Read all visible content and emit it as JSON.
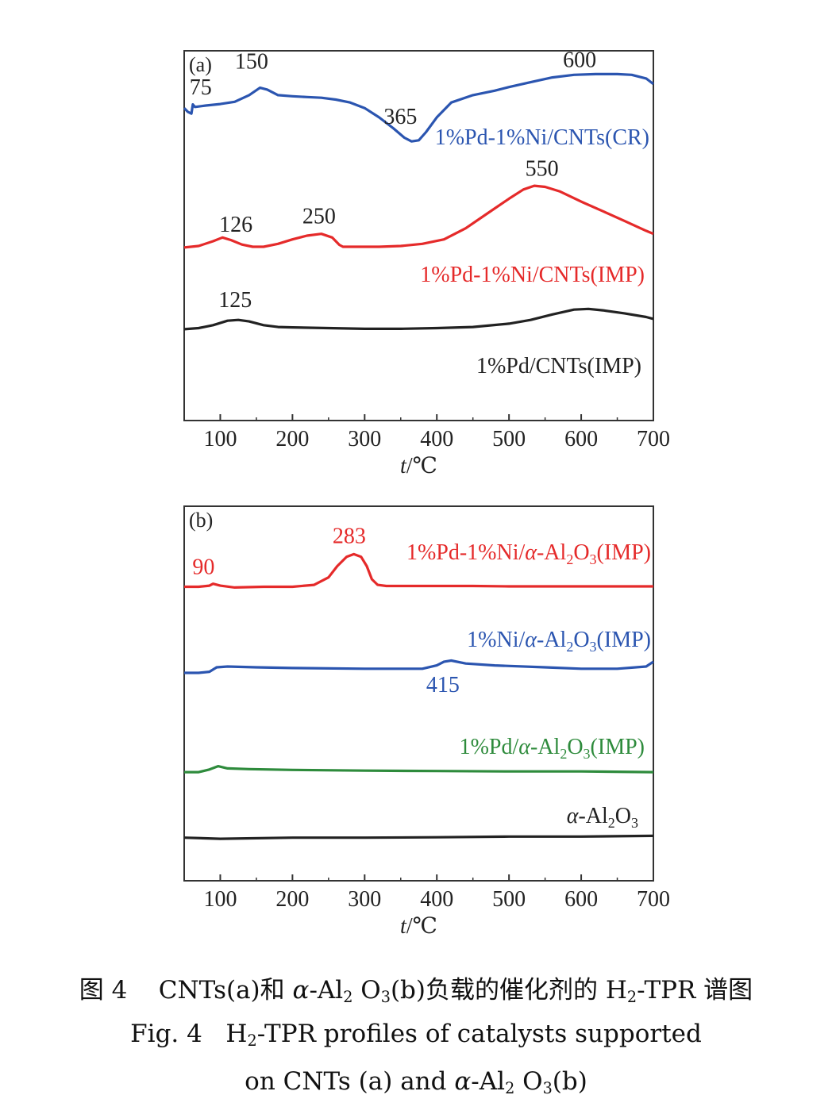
{
  "chart_data": [
    {
      "type": "line",
      "panel_label": "(a)",
      "xlabel_var": "t",
      "xlabel_unit": "/℃",
      "xlim": [
        50,
        700
      ],
      "x_ticks": [
        "100",
        "200",
        "300",
        "400",
        "500",
        "600",
        "700"
      ],
      "series": [
        {
          "name": "1%Pd-1%Ni/CNTs(CR)",
          "color": "#2b55b0",
          "points": [
            [
              50,
              0.845
            ],
            [
              55,
              0.835
            ],
            [
              60,
              0.83
            ],
            [
              62,
              0.855
            ],
            [
              65,
              0.848
            ],
            [
              80,
              0.852
            ],
            [
              100,
              0.856
            ],
            [
              120,
              0.862
            ],
            [
              140,
              0.88
            ],
            [
              155,
              0.9
            ],
            [
              165,
              0.895
            ],
            [
              180,
              0.88
            ],
            [
              200,
              0.877
            ],
            [
              220,
              0.875
            ],
            [
              240,
              0.873
            ],
            [
              260,
              0.868
            ],
            [
              280,
              0.86
            ],
            [
              300,
              0.845
            ],
            [
              320,
              0.82
            ],
            [
              340,
              0.79
            ],
            [
              355,
              0.765
            ],
            [
              365,
              0.755
            ],
            [
              375,
              0.758
            ],
            [
              385,
              0.78
            ],
            [
              400,
              0.82
            ],
            [
              420,
              0.86
            ],
            [
              450,
              0.88
            ],
            [
              480,
              0.892
            ],
            [
              500,
              0.902
            ],
            [
              530,
              0.915
            ],
            [
              560,
              0.928
            ],
            [
              590,
              0.935
            ],
            [
              620,
              0.937
            ],
            [
              650,
              0.937
            ],
            [
              670,
              0.935
            ],
            [
              690,
              0.925
            ],
            [
              700,
              0.91
            ]
          ],
          "annotations": [
            {
              "text": "75",
              "x": 75
            },
            {
              "text": "150",
              "x": 150
            },
            {
              "text": "365",
              "x": 365
            },
            {
              "text": "600",
              "x": 600
            }
          ]
        },
        {
          "name": "1%Pd-1%Ni/CNTs(IMP)",
          "color": "#e52a2a",
          "points": [
            [
              50,
              0.468
            ],
            [
              70,
              0.472
            ],
            [
              90,
              0.485
            ],
            [
              103,
              0.495
            ],
            [
              115,
              0.488
            ],
            [
              130,
              0.476
            ],
            [
              145,
              0.47
            ],
            [
              160,
              0.47
            ],
            [
              180,
              0.478
            ],
            [
              200,
              0.49
            ],
            [
              220,
              0.5
            ],
            [
              240,
              0.505
            ],
            [
              255,
              0.495
            ],
            [
              265,
              0.475
            ],
            [
              270,
              0.47
            ],
            [
              290,
              0.47
            ],
            [
              320,
              0.47
            ],
            [
              350,
              0.472
            ],
            [
              380,
              0.478
            ],
            [
              410,
              0.49
            ],
            [
              440,
              0.52
            ],
            [
              470,
              0.56
            ],
            [
              500,
              0.6
            ],
            [
              520,
              0.625
            ],
            [
              535,
              0.635
            ],
            [
              550,
              0.632
            ],
            [
              570,
              0.62
            ],
            [
              600,
              0.592
            ],
            [
              630,
              0.566
            ],
            [
              660,
              0.54
            ],
            [
              690,
              0.513
            ],
            [
              700,
              0.505
            ]
          ],
          "annotations": [
            {
              "text": "126",
              "x": 126
            },
            {
              "text": "250",
              "x": 250
            },
            {
              "text": "550",
              "x": 550
            }
          ]
        },
        {
          "name": "1%Pd/CNTs(IMP)",
          "color": "#222222",
          "points": [
            [
              50,
              0.247
            ],
            [
              70,
              0.25
            ],
            [
              90,
              0.258
            ],
            [
              110,
              0.27
            ],
            [
              125,
              0.272
            ],
            [
              140,
              0.268
            ],
            [
              160,
              0.258
            ],
            [
              180,
              0.253
            ],
            [
              200,
              0.252
            ],
            [
              250,
              0.25
            ],
            [
              300,
              0.248
            ],
            [
              350,
              0.248
            ],
            [
              400,
              0.25
            ],
            [
              450,
              0.253
            ],
            [
              500,
              0.262
            ],
            [
              530,
              0.272
            ],
            [
              560,
              0.287
            ],
            [
              590,
              0.3
            ],
            [
              610,
              0.302
            ],
            [
              630,
              0.298
            ],
            [
              660,
              0.29
            ],
            [
              690,
              0.28
            ],
            [
              700,
              0.275
            ]
          ],
          "annotations": [
            {
              "text": "125",
              "x": 125
            }
          ]
        }
      ]
    },
    {
      "type": "line",
      "panel_label": "(b)",
      "xlabel_var": "t",
      "xlabel_unit": "/℃",
      "xlim": [
        50,
        700
      ],
      "x_ticks": [
        "100",
        "200",
        "300",
        "400",
        "500",
        "600",
        "700"
      ],
      "series": [
        {
          "name_parts": [
            "1%Pd-1%Ni/",
            "α",
            "-Al",
            "2",
            "O",
            "3",
            "(IMP)"
          ],
          "color": "#e52a2a",
          "points": [
            [
              50,
              0.785
            ],
            [
              70,
              0.785
            ],
            [
              85,
              0.788
            ],
            [
              90,
              0.793
            ],
            [
              100,
              0.788
            ],
            [
              120,
              0.783
            ],
            [
              160,
              0.785
            ],
            [
              200,
              0.785
            ],
            [
              230,
              0.79
            ],
            [
              250,
              0.81
            ],
            [
              262,
              0.84
            ],
            [
              275,
              0.865
            ],
            [
              285,
              0.872
            ],
            [
              295,
              0.865
            ],
            [
              303,
              0.84
            ],
            [
              310,
              0.805
            ],
            [
              318,
              0.79
            ],
            [
              330,
              0.787
            ],
            [
              380,
              0.787
            ],
            [
              450,
              0.787
            ],
            [
              500,
              0.786
            ],
            [
              600,
              0.786
            ],
            [
              700,
              0.786
            ]
          ],
          "annotations": [
            {
              "text": "90",
              "x": 90
            },
            {
              "text": "283",
              "x": 283
            }
          ]
        },
        {
          "name_parts": [
            "1%Ni/",
            "α",
            "-Al",
            "2",
            "O",
            "3",
            "(IMP)"
          ],
          "color": "#2b55b0",
          "points": [
            [
              50,
              0.555
            ],
            [
              70,
              0.555
            ],
            [
              85,
              0.558
            ],
            [
              95,
              0.57
            ],
            [
              110,
              0.572
            ],
            [
              150,
              0.57
            ],
            [
              200,
              0.568
            ],
            [
              300,
              0.566
            ],
            [
              380,
              0.566
            ],
            [
              400,
              0.575
            ],
            [
              410,
              0.585
            ],
            [
              420,
              0.588
            ],
            [
              440,
              0.58
            ],
            [
              480,
              0.575
            ],
            [
              550,
              0.57
            ],
            [
              600,
              0.566
            ],
            [
              650,
              0.566
            ],
            [
              690,
              0.572
            ],
            [
              700,
              0.585
            ]
          ],
          "annotations": [
            {
              "text": "415",
              "x": 415
            }
          ]
        },
        {
          "name_parts": [
            "1%Pd/",
            "α",
            "-Al",
            "2",
            "O",
            "3",
            "(IMP)"
          ],
          "color": "#2e8b3c",
          "points": [
            [
              50,
              0.29
            ],
            [
              70,
              0.29
            ],
            [
              85,
              0.297
            ],
            [
              97,
              0.306
            ],
            [
              110,
              0.3
            ],
            [
              140,
              0.298
            ],
            [
              200,
              0.296
            ],
            [
              300,
              0.294
            ],
            [
              400,
              0.293
            ],
            [
              500,
              0.292
            ],
            [
              600,
              0.292
            ],
            [
              700,
              0.29
            ]
          ]
        },
        {
          "name_parts": [
            "",
            "α",
            "-Al",
            "2",
            "O",
            "3",
            ""
          ],
          "color": "#222222",
          "points": [
            [
              50,
              0.115
            ],
            [
              100,
              0.112
            ],
            [
              200,
              0.115
            ],
            [
              300,
              0.115
            ],
            [
              400,
              0.116
            ],
            [
              500,
              0.118
            ],
            [
              600,
              0.118
            ],
            [
              700,
              0.12
            ]
          ]
        }
      ]
    }
  ],
  "caption": {
    "cn_prefix": "图 4",
    "cn_part1": "CNTs(a)和 ",
    "alpha": "α",
    "al": "-Al",
    "sub2": "2",
    "o": " O",
    "sub3": "3",
    "cn_part2": "(b)负载的催化剂的 H",
    "cn_sub2": "2",
    "cn_part3": "-TPR 谱图",
    "en_line1_prefix": "Fig. 4",
    "en_line1_h": "H",
    "en_line1_sub": "2",
    "en_line1_rest": "-TPR profiles of catalysts supported",
    "en_line2_pre": "on CNTs (a) and ",
    "en_line2_post": "(b)"
  }
}
